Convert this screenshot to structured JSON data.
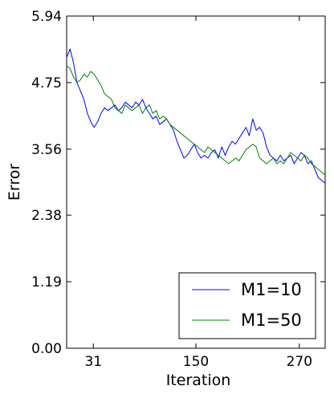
{
  "chart_data": {
    "type": "line",
    "xlabel": "Iteration",
    "ylabel": "Error",
    "xlim": [
      0,
      300
    ],
    "ylim": [
      0,
      5.94
    ],
    "xticks": [
      {
        "value": 31,
        "label": "31"
      },
      {
        "value": 150,
        "label": "150"
      },
      {
        "value": 270,
        "label": "270"
      }
    ],
    "yticks": [
      {
        "value": 0,
        "label": "0.00"
      },
      {
        "value": 1.19,
        "label": "1.19"
      },
      {
        "value": 2.38,
        "label": "2.38"
      },
      {
        "value": 3.56,
        "label": "3.56"
      },
      {
        "value": 4.75,
        "label": "4.75"
      },
      {
        "value": 5.94,
        "label": "5.94"
      }
    ],
    "legend_position": "lower-right",
    "grid": false,
    "series": [
      {
        "name": "M1=10",
        "color": "#0000ff",
        "x": [
          0,
          4,
          8,
          12,
          16,
          20,
          24,
          28,
          32,
          36,
          40,
          44,
          48,
          52,
          56,
          60,
          64,
          68,
          72,
          76,
          80,
          84,
          88,
          92,
          96,
          100,
          104,
          108,
          112,
          116,
          120,
          124,
          128,
          132,
          136,
          140,
          144,
          148,
          152,
          156,
          160,
          164,
          168,
          172,
          176,
          180,
          184,
          188,
          192,
          196,
          200,
          204,
          208,
          212,
          216,
          220,
          224,
          228,
          232,
          236,
          240,
          244,
          248,
          252,
          256,
          260,
          264,
          268,
          272,
          276,
          280,
          284,
          288,
          292,
          296,
          300
        ],
        "y": [
          5.2,
          5.35,
          5.1,
          4.75,
          4.6,
          4.45,
          4.2,
          4.05,
          3.95,
          4.05,
          4.2,
          4.3,
          4.25,
          4.3,
          4.35,
          4.25,
          4.3,
          4.4,
          4.35,
          4.3,
          4.4,
          4.35,
          4.45,
          4.3,
          4.2,
          4.1,
          4.15,
          4.0,
          4.05,
          4.1,
          4.0,
          3.9,
          3.7,
          3.55,
          3.4,
          3.45,
          3.55,
          3.65,
          3.5,
          3.4,
          3.45,
          3.4,
          3.5,
          3.55,
          3.4,
          3.6,
          3.45,
          3.6,
          3.7,
          3.65,
          3.75,
          3.85,
          3.95,
          3.8,
          4.1,
          3.9,
          3.95,
          3.85,
          3.6,
          3.45,
          3.4,
          3.35,
          3.45,
          3.35,
          3.4,
          3.45,
          3.3,
          3.4,
          3.5,
          3.45,
          3.3,
          3.35,
          3.2,
          3.05,
          3.0,
          2.95
        ]
      },
      {
        "name": "M1=50",
        "color": "#008000",
        "x": [
          0,
          4,
          8,
          12,
          16,
          20,
          24,
          28,
          32,
          36,
          40,
          44,
          48,
          52,
          56,
          60,
          64,
          68,
          72,
          76,
          80,
          84,
          88,
          92,
          96,
          100,
          104,
          108,
          112,
          116,
          120,
          124,
          128,
          132,
          136,
          140,
          144,
          148,
          152,
          156,
          160,
          164,
          168,
          172,
          176,
          180,
          184,
          188,
          192,
          196,
          200,
          204,
          208,
          212,
          216,
          220,
          224,
          228,
          232,
          236,
          240,
          244,
          248,
          252,
          256,
          260,
          264,
          268,
          272,
          276,
          280,
          284,
          288,
          292,
          296,
          300
        ],
        "y": [
          5.05,
          5.0,
          4.85,
          4.75,
          4.8,
          4.9,
          4.85,
          4.95,
          4.9,
          4.8,
          4.7,
          4.55,
          4.5,
          4.45,
          4.3,
          4.25,
          4.2,
          4.35,
          4.3,
          4.25,
          4.3,
          4.35,
          4.2,
          4.3,
          4.35,
          4.2,
          4.25,
          4.1,
          4.15,
          4.1,
          4.0,
          3.95,
          3.9,
          3.85,
          3.8,
          3.75,
          3.7,
          3.65,
          3.6,
          3.55,
          3.5,
          3.6,
          3.55,
          3.5,
          3.45,
          3.4,
          3.35,
          3.3,
          3.35,
          3.4,
          3.35,
          3.45,
          3.55,
          3.6,
          3.65,
          3.6,
          3.4,
          3.35,
          3.3,
          3.35,
          3.4,
          3.3,
          3.35,
          3.3,
          3.4,
          3.5,
          3.45,
          3.4,
          3.35,
          3.45,
          3.4,
          3.3,
          3.25,
          3.2,
          3.15,
          3.1
        ]
      }
    ]
  }
}
